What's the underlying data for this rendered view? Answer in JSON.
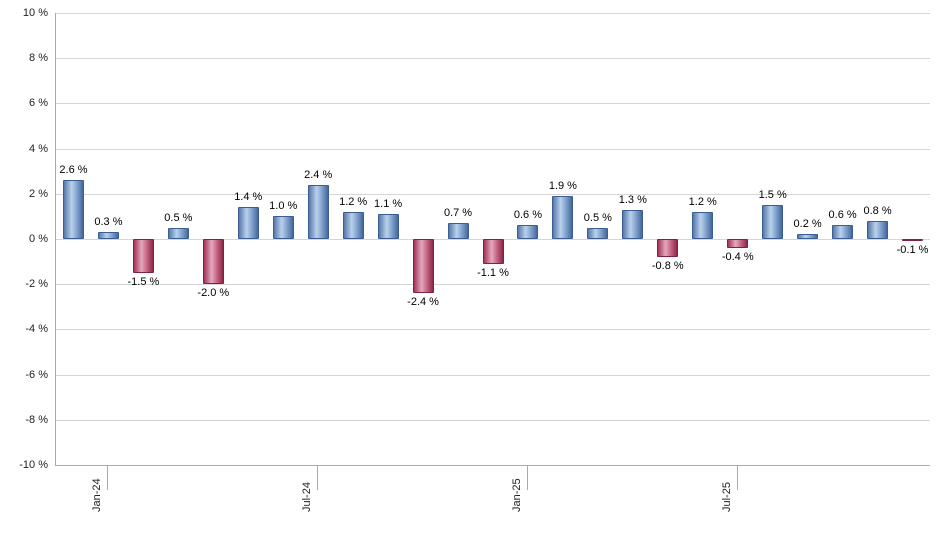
{
  "chart_data": {
    "type": "bar",
    "title": "",
    "xlabel": "",
    "ylabel": "",
    "ylim": [
      -10,
      10
    ],
    "ytick_step": 2,
    "grid": true,
    "legend": null,
    "values": [
      2.6,
      0.3,
      -1.5,
      0.5,
      -2.0,
      1.4,
      1.0,
      2.4,
      1.2,
      1.1,
      -2.4,
      0.7,
      -1.1,
      0.6,
      1.9,
      0.5,
      1.3,
      -0.8,
      1.2,
      -0.4,
      1.5,
      0.2,
      0.6,
      0.8,
      -0.1
    ],
    "bar_labels": [
      "2.6 %",
      "0.3 %",
      "-1.5 %",
      "0.5 %",
      "-2.0 %",
      "1.4 %",
      "1.0 %",
      "2.4 %",
      "1.2 %",
      "1.1 %",
      "-2.4 %",
      "0.7 %",
      "-1.1 %",
      "0.6 %",
      "1.9 %",
      "0.5 %",
      "1.3 %",
      "-0.8 %",
      "1.2 %",
      "-0.4 %",
      "1.5 %",
      "0.2 %",
      "0.6 %",
      "0.8 %",
      "-0.1 %"
    ],
    "ytick_labels": [
      "10 %",
      "8 %",
      "6 %",
      "4 %",
      "2 %",
      "0 %",
      "-2 %",
      "-4 %",
      "-6 %",
      "-8 %",
      "-10 %"
    ],
    "xticks": [
      {
        "index": 1,
        "label": "Jan-24"
      },
      {
        "index": 7,
        "label": "Jul-24"
      },
      {
        "index": 13,
        "label": "Jan-25"
      },
      {
        "index": 19,
        "label": "Jul-25"
      }
    ]
  },
  "colors": {
    "positive_bar": "#6f93c0",
    "negative_bar": "#b43a5e",
    "grid": "#d6d6d6",
    "axis": "#aaaaaa",
    "label_text": "#000000"
  }
}
